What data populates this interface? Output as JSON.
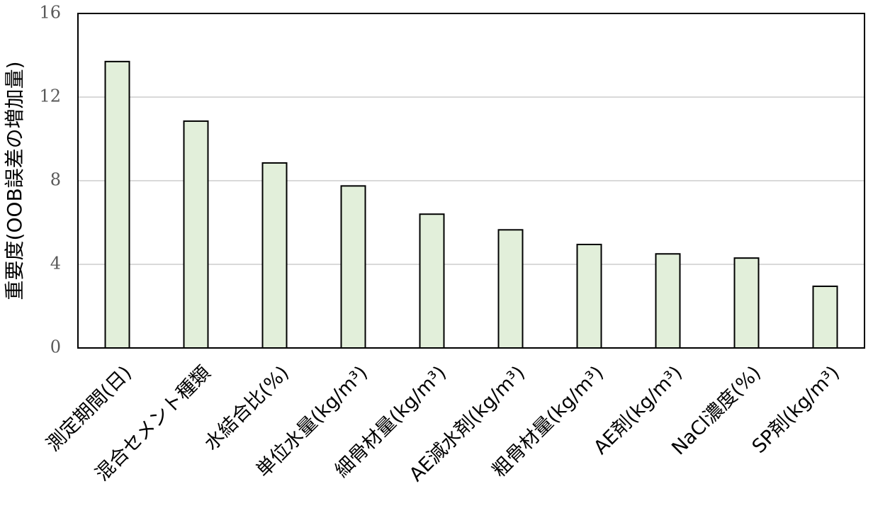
{
  "chart_data": {
    "type": "bar",
    "title": "",
    "xlabel": "",
    "ylabel": "重要度(OOB誤差の増加量)",
    "ylim": [
      0,
      16
    ],
    "yticks": [
      0,
      4,
      8,
      12,
      16
    ],
    "ytick_labels": [
      "0",
      "4",
      "8",
      "12",
      "16"
    ],
    "grid": true,
    "categories": [
      "測定期間(日)",
      "混合セメント種類",
      "水結合比(%)",
      "単位水量(kg/m³)",
      "細骨材量(kg/m³)",
      "AE減水剤(kg/m³)",
      "粗骨材量(kg/m³)",
      "AE剤(kg/m³)",
      "NaCl濃度(%)",
      "SP剤(kg/m³)"
    ],
    "values": [
      13.7,
      10.85,
      8.85,
      7.75,
      6.4,
      5.65,
      4.95,
      4.5,
      4.3,
      2.95
    ],
    "colors": {
      "bar_fill": "#e2efda",
      "bar_stroke": "#000000",
      "grid": "#d9d9d9",
      "axis": "#000000"
    }
  }
}
